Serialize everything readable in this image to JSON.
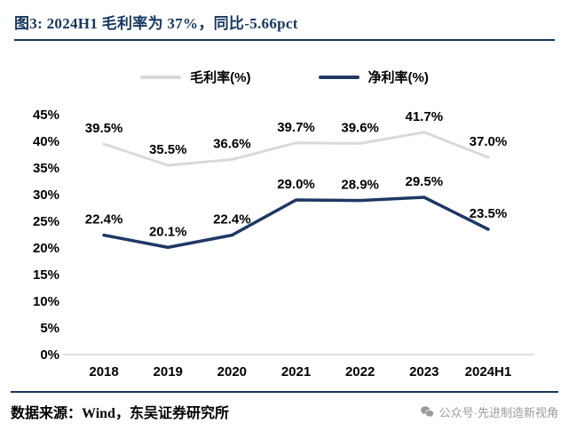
{
  "header": {
    "title": "图3:  2024H1 毛利率为 37%，同比-5.66pct",
    "accent_color": "#17375e"
  },
  "chart_data": {
    "type": "line",
    "title": "2024H1 毛利率为 37%，同比-5.66pct",
    "categories": [
      "2018",
      "2019",
      "2020",
      "2021",
      "2022",
      "2023",
      "2024H1"
    ],
    "series": [
      {
        "name": "毛利率(%)",
        "values": [
          39.5,
          35.5,
          36.6,
          39.7,
          39.6,
          41.7,
          37.0
        ],
        "color": "#d9d9d9",
        "stroke_width": 3
      },
      {
        "name": "净利率(%)",
        "values": [
          22.4,
          20.1,
          22.4,
          29.0,
          28.9,
          29.5,
          23.5
        ],
        "color": "#1f3864",
        "stroke_width": 3.5
      }
    ],
    "ylim": [
      0,
      45
    ],
    "ytick_step": 5,
    "ytick_labels": [
      "0%",
      "5%",
      "10%",
      "15%",
      "20%",
      "25%",
      "30%",
      "35%",
      "40%",
      "45%"
    ],
    "grid": false,
    "legend_position": "top",
    "data_labels": true,
    "axis_color": "#bfbfbf"
  },
  "footer": {
    "source": "数据来源：Wind，东吴证券研究所",
    "wechat": "公众号·先进制造新视角"
  }
}
